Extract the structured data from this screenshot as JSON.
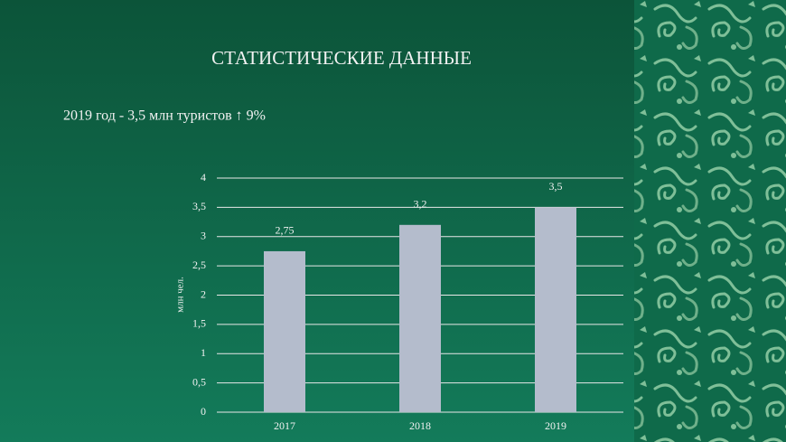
{
  "chart_data": {
    "type": "bar",
    "title": "СТАТИСТИЧЕСКИЕ ДАННЫЕ",
    "subtitle": "2019 год  - 3,5 млн туристов ↑ 9%",
    "y_label": "млн чел.",
    "categories": [
      "2017",
      "2018",
      "2019"
    ],
    "values": [
      2.75,
      3.2,
      3.5
    ],
    "value_labels": [
      "2,75",
      "3,2",
      "3,5"
    ],
    "color": "#b4bccc",
    "ylim": [
      0,
      4
    ],
    "yticks": [
      0,
      {
        "value": 0.5,
        "label": "0,5"
      },
      1,
      {
        "value": 1.5,
        "label": "1,5"
      },
      2,
      {
        "value": 2.5,
        "label": "2,5"
      },
      3,
      {
        "value": 3.5,
        "label": "3,5"
      },
      4
    ],
    "grid": true
  }
}
